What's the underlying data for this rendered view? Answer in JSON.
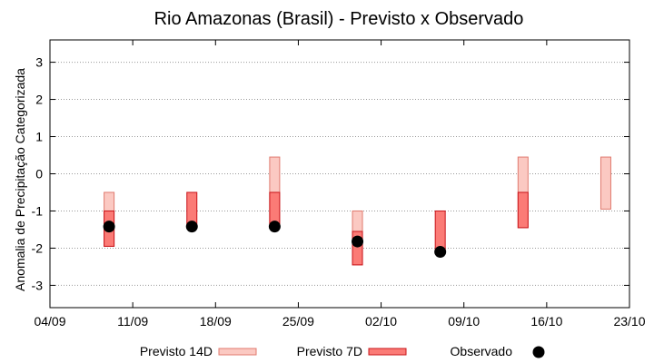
{
  "chart_data": {
    "type": "range-bar",
    "title": "Rio Amazonas (Brasil) - Previsto x Observado",
    "xlabel": "",
    "ylabel": "Anomalia de Precipitação Categorizada",
    "x_ticks": [
      "04/09",
      "11/09",
      "18/09",
      "25/09",
      "02/10",
      "09/10",
      "16/10",
      "23/10"
    ],
    "x_tick_days": [
      0,
      7,
      14,
      21,
      28,
      35,
      42,
      49
    ],
    "y_ticks": [
      3,
      2,
      1,
      0,
      -1,
      -2,
      -3
    ],
    "ylim": [
      -3.6,
      3.6
    ],
    "xlim_days": [
      0,
      49
    ],
    "grid": "horizontal-dotted",
    "legend_position": "bottom",
    "colors": {
      "previsto_14d_fill": "#fbc9c2",
      "previsto_14d_edge": "#e07a6f",
      "previsto_7d_fill": "#fb7b76",
      "previsto_7d_edge": "#c8141a",
      "observado": "#000000",
      "grid": "#9a9a9a"
    },
    "series": [
      {
        "name": "Previsto 14D",
        "kind": "range",
        "points": [
          {
            "day": 5,
            "low": -1.95,
            "high": -0.5
          },
          {
            "day": 19,
            "low": -1.45,
            "high": 0.45
          },
          {
            "day": 26,
            "low": -2.45,
            "high": -1.0
          },
          {
            "day": 40,
            "low": -1.45,
            "high": 0.45
          },
          {
            "day": 47,
            "low": -0.95,
            "high": 0.45
          }
        ]
      },
      {
        "name": "Previsto 7D",
        "kind": "range",
        "points": [
          {
            "day": 5,
            "low": -1.95,
            "high": -1.0
          },
          {
            "day": 12,
            "low": -1.45,
            "high": -0.5
          },
          {
            "day": 19,
            "low": -1.45,
            "high": -0.5
          },
          {
            "day": 26,
            "low": -2.45,
            "high": -1.55
          },
          {
            "day": 33,
            "low": -2.05,
            "high": -1.0
          },
          {
            "day": 40,
            "low": -1.45,
            "high": -0.5
          }
        ]
      },
      {
        "name": "Observado",
        "kind": "point",
        "points": [
          {
            "day": 5,
            "value": -1.42
          },
          {
            "day": 12,
            "value": -1.42
          },
          {
            "day": 19,
            "value": -1.42
          },
          {
            "day": 26,
            "value": -1.82
          },
          {
            "day": 33,
            "value": -2.1
          }
        ]
      }
    ]
  }
}
